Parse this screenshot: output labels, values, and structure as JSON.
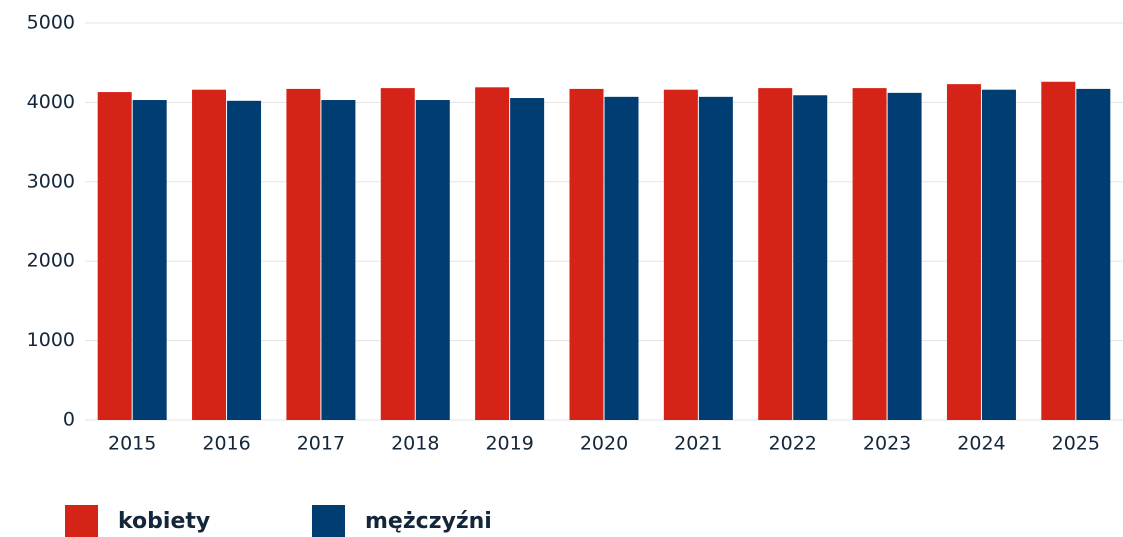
{
  "chart_data": {
    "type": "bar",
    "categories": [
      "2015",
      "2016",
      "2017",
      "2018",
      "2019",
      "2020",
      "2021",
      "2022",
      "2023",
      "2024",
      "2025"
    ],
    "series": [
      {
        "name": "kobiety",
        "color": "#d52318",
        "values": [
          4130,
          4160,
          4170,
          4180,
          4190,
          4170,
          4160,
          4180,
          4180,
          4230,
          4260
        ]
      },
      {
        "name": "mężczyźni",
        "color": "#003d73",
        "values": [
          4030,
          4020,
          4030,
          4030,
          4055,
          4070,
          4070,
          4090,
          4120,
          4160,
          4170
        ]
      }
    ],
    "ylim": [
      0,
      5000
    ],
    "yticks": [
      0,
      1000,
      2000,
      3000,
      4000,
      5000
    ],
    "grid": true,
    "legend": "bottom"
  }
}
